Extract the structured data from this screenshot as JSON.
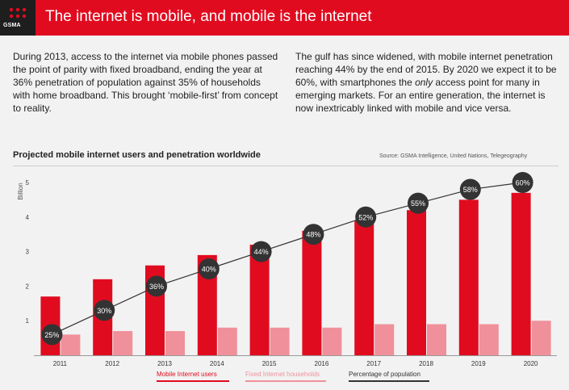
{
  "header": {
    "logo_text": "GSMA",
    "title": "The internet is mobile, and mobile is the internet"
  },
  "intro": {
    "left_paragraph": "During 2013, access to the internet via mobile phones passed the point of parity with fixed broadband, ending the year at 36% penetration of population against 35% of households with home broadband. This brought ‘mobile-first’ from concept to reality.",
    "right_before": "The gulf has since widened, with mobile internet penetration reaching 44% by the end of 2015. By 2020 we expect it to be 60%, with smartphones the ",
    "right_em": "only",
    "right_after": " access point for many in emerging markets. For an entire generation, the internet is now inextricably linked with mobile and vice versa."
  },
  "chart_data": {
    "type": "bar",
    "title": "Projected mobile internet users and penetration worldwide",
    "source": "Source: GSMA Intelligence, United Nations, Telegeography",
    "ylabel": "Billion",
    "xlabel": "",
    "ylim": [
      0,
      5
    ],
    "yticks": [
      1,
      2,
      3,
      4,
      5
    ],
    "categories": [
      "2011",
      "2012",
      "2013",
      "2014",
      "2015",
      "2016",
      "2017",
      "2018",
      "2019",
      "2020"
    ],
    "series": [
      {
        "name": "Mobile Internet users",
        "values": [
          1.7,
          2.2,
          2.6,
          2.9,
          3.2,
          3.6,
          3.9,
          4.2,
          4.5,
          4.7
        ],
        "color": "#e10b1f"
      },
      {
        "name": "Fixed Internet households",
        "values": [
          0.6,
          0.7,
          0.7,
          0.8,
          0.8,
          0.8,
          0.9,
          0.9,
          0.9,
          1.0
        ],
        "color": "#f0909a"
      }
    ],
    "line_series": {
      "name": "Percentage of population",
      "labels": [
        "25%",
        "30%",
        "36%",
        "40%",
        "44%",
        "48%",
        "52%",
        "55%",
        "58%",
        "60%"
      ],
      "values_billion_scale": [
        0.6,
        1.3,
        2.0,
        2.5,
        3.0,
        3.5,
        4.0,
        4.4,
        4.8,
        5.0
      ],
      "color": "#333333"
    },
    "legend_placement": "bottom",
    "grid": false
  }
}
